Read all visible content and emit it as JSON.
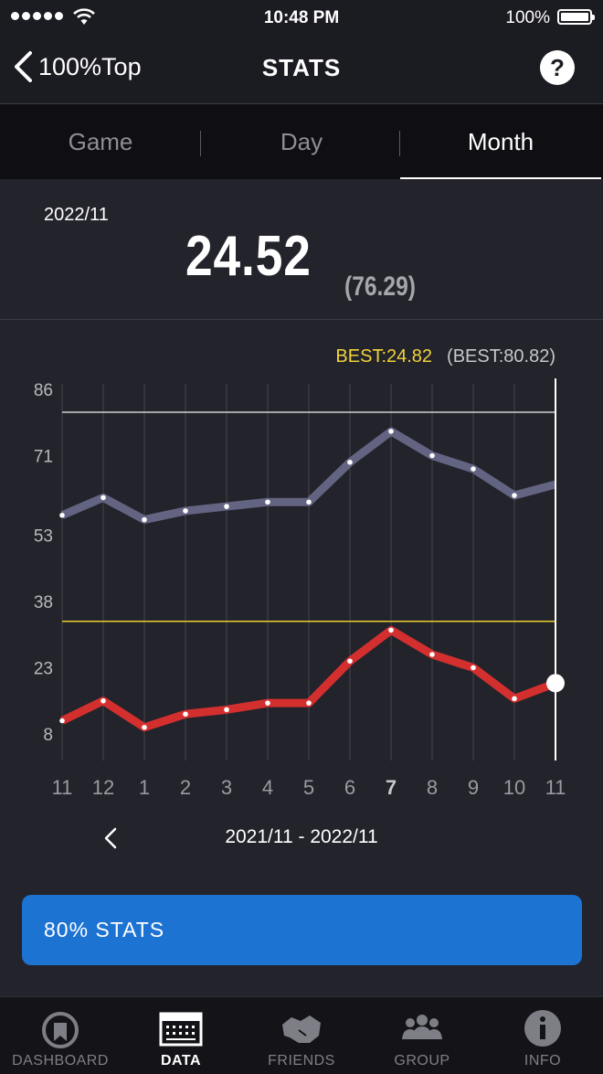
{
  "status_bar": {
    "time": "10:48 PM",
    "battery": "100%"
  },
  "nav": {
    "back_label": "100%Top",
    "title": "STATS",
    "help_label": "?"
  },
  "tabs": [
    {
      "label": "Game",
      "active": false
    },
    {
      "label": "Day",
      "active": false
    },
    {
      "label": "Month",
      "active": true
    }
  ],
  "summary": {
    "period": "2022/11",
    "value": "24.52",
    "sub_value": "(76.29)"
  },
  "best": {
    "main": "BEST:24.82",
    "sub": "(BEST:80.82)"
  },
  "chart_data": {
    "type": "line",
    "x": [
      "11",
      "12",
      "1",
      "2",
      "3",
      "4",
      "5",
      "6",
      "7",
      "8",
      "9",
      "10",
      "11"
    ],
    "yticks": [
      86,
      71,
      53,
      38,
      23,
      8
    ],
    "ylim": [
      2,
      86
    ],
    "series": [
      {
        "color": "#636382",
        "values": [
          57.5,
          61.5,
          56.5,
          58.5,
          59.5,
          60.5,
          60.5,
          69.5,
          76.5,
          71,
          68,
          62,
          64.5
        ]
      },
      {
        "color": "#d42f2f",
        "values": [
          11,
          15.5,
          9.5,
          12.5,
          13.5,
          15,
          15,
          24.5,
          31.5,
          26,
          23,
          16,
          19.5
        ]
      }
    ],
    "reference_lines": [
      {
        "value": 80.82,
        "color": "#cfcfd4"
      },
      {
        "value": 33.5,
        "color": "#e8cf2a"
      }
    ],
    "selected_index": 12
  },
  "range": {
    "label": "2021/11 - 2022/11"
  },
  "stats_button": {
    "label": "80% STATS"
  },
  "tabbar": [
    {
      "label": "DASHBOARD",
      "icon": "dashboard-gauge-icon",
      "active": false
    },
    {
      "label": "DATA",
      "icon": "data-calendar-icon",
      "active": true
    },
    {
      "label": "FRIENDS",
      "icon": "friends-handshake-icon",
      "active": false
    },
    {
      "label": "GROUP",
      "icon": "group-people-icon",
      "active": false
    },
    {
      "label": "INFO",
      "icon": "info-icon",
      "active": false
    }
  ]
}
